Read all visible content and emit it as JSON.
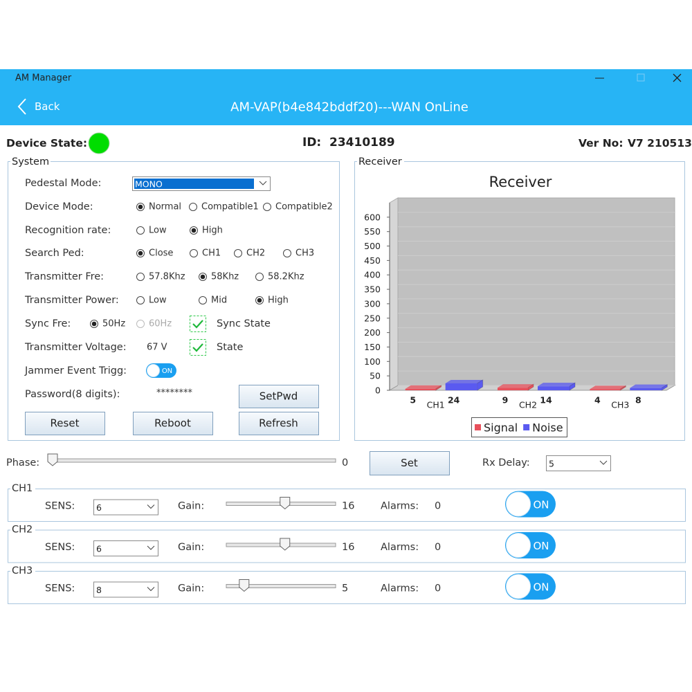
{
  "window": {
    "title": "AM Manager"
  },
  "header": {
    "back": "Back",
    "title": "AM-VAP(b4e842bddf20)---WAN OnLine"
  },
  "status": {
    "device_state": "Device State:",
    "id_label": "ID:",
    "id": "23410189",
    "ver_label": "Ver No:",
    "ver": "V7 210513"
  },
  "system": {
    "title": "System",
    "pedestal_mode": {
      "label": "Pedestal Mode:",
      "value": "MONO"
    },
    "radio_rows": [
      {
        "label": "Device Mode:",
        "options": [
          {
            "label": "Normal",
            "checked": true
          },
          {
            "label": "Compatible1",
            "checked": false
          },
          {
            "label": "Compatible2",
            "checked": false
          }
        ]
      },
      {
        "label": "Recognition rate:",
        "options": [
          {
            "label": "Low",
            "checked": false
          },
          {
            "label": "High",
            "checked": true
          }
        ]
      },
      {
        "label": "Search Ped:",
        "options": [
          {
            "label": "Close",
            "checked": true
          },
          {
            "label": "CH1",
            "checked": false
          },
          {
            "label": "CH2",
            "checked": false
          },
          {
            "label": "CH3",
            "checked": false
          }
        ]
      },
      {
        "label": "Transmitter Fre:",
        "options": [
          {
            "label": "57.8Khz",
            "checked": false
          },
          {
            "label": "58Khz",
            "checked": true
          },
          {
            "label": "58.2Khz",
            "checked": false
          }
        ]
      },
      {
        "label": "Transmitter Power:",
        "options": [
          {
            "label": "Low",
            "checked": false
          },
          {
            "label": "Mid",
            "checked": false
          },
          {
            "label": "High",
            "checked": true
          }
        ]
      },
      {
        "label": "Sync Fre:",
        "options": [
          {
            "label": "50Hz",
            "checked": true
          },
          {
            "label": "60Hz",
            "checked": false,
            "disabled": true
          }
        ]
      }
    ],
    "sync_state": {
      "label": "Sync State",
      "checked": true
    },
    "voltage": {
      "label": "Transmitter Voltage:",
      "value": "67 V"
    },
    "state": {
      "label": "State",
      "checked": true
    },
    "jammer": {
      "label": "Jammer Event Trigg:",
      "toggle": "ON"
    },
    "password": {
      "label": "Password(8 digits):",
      "value": "********"
    },
    "buttons": {
      "set_pwd": "SetPwd",
      "reset": "Reset",
      "reboot": "Reboot",
      "refresh": "Refresh"
    }
  },
  "receiver": {
    "title": "Receiver"
  },
  "chart_data": {
    "type": "bar",
    "title": "Receiver",
    "categories": [
      "CH1",
      "CH2",
      "CH3"
    ],
    "series": [
      {
        "name": "Signal",
        "color": "#e8505b",
        "values": [
          5,
          9,
          4
        ]
      },
      {
        "name": "Noise",
        "color": "#5a5af0",
        "values": [
          24,
          14,
          8
        ]
      }
    ],
    "ylim": [
      0,
      650
    ],
    "yticks": [
      0,
      50,
      100,
      150,
      200,
      250,
      300,
      350,
      400,
      450,
      500,
      550,
      600
    ],
    "grid": true,
    "legend": "bottom"
  },
  "phase": {
    "label": "Phase:",
    "value": 0,
    "set": "Set"
  },
  "rx_delay": {
    "label": "Rx Delay:",
    "value": "5"
  },
  "channels": [
    {
      "title": "CH1",
      "sens_label": "SENS:",
      "sens": "6",
      "gain_label": "Gain:",
      "gain": 16,
      "alarms_label": "Alarms:",
      "alarms": 0,
      "toggle": "ON"
    },
    {
      "title": "CH2",
      "sens_label": "SENS:",
      "sens": "6",
      "gain_label": "Gain:",
      "gain": 16,
      "alarms_label": "Alarms:",
      "alarms": 0,
      "toggle": "ON"
    },
    {
      "title": "CH3",
      "sens_label": "SENS:",
      "sens": "8",
      "gain_label": "Gain:",
      "gain": 5,
      "alarms_label": "Alarms:",
      "alarms": 0,
      "toggle": "ON"
    }
  ]
}
